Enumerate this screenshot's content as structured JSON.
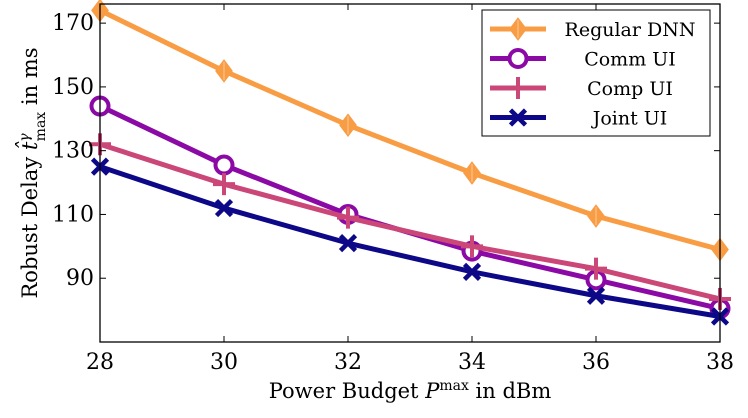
{
  "chart_data": {
    "type": "line",
    "title": "",
    "xlabel": "Power Budget P^max in dBm",
    "xlabel_parts": {
      "prefix": "Power Budget ",
      "var": "P",
      "sup": "max",
      "suffix": " in dBm"
    },
    "ylabel": "Robust Delay t̂^γ_max in ms",
    "ylabel_parts": {
      "prefix": "Robust Delay ",
      "var": "t̂",
      "sup": "γ",
      "sub": "max",
      "suffix": " in ms"
    },
    "x": [
      28,
      30,
      32,
      34,
      36,
      38
    ],
    "xticks": [
      "28",
      "30",
      "32",
      "34",
      "36",
      "38"
    ],
    "yticks": [
      "90",
      "110",
      "130",
      "150",
      "170"
    ],
    "xlim": [
      28,
      38
    ],
    "ylim": [
      70,
      176
    ],
    "grid": false,
    "legend_position": "top-right",
    "series": [
      {
        "name": "Regular DNN",
        "color": "#f99d45",
        "marker": "diamond",
        "values": [
          174,
          155,
          138,
          123,
          109.5,
          99
        ]
      },
      {
        "name": "Comm UI",
        "color": "#8b0aa5",
        "marker": "circle",
        "values": [
          144,
          125.5,
          110,
          98.5,
          89.5,
          80.5
        ]
      },
      {
        "name": "Comp UI",
        "color": "#cb4778",
        "marker": "plus",
        "values": [
          132,
          119.5,
          109,
          100,
          93,
          83.5
        ]
      },
      {
        "name": "Joint UI",
        "color": "#0d0887",
        "marker": "cross",
        "values": [
          125,
          112,
          101,
          92,
          84.5,
          78
        ]
      }
    ]
  }
}
